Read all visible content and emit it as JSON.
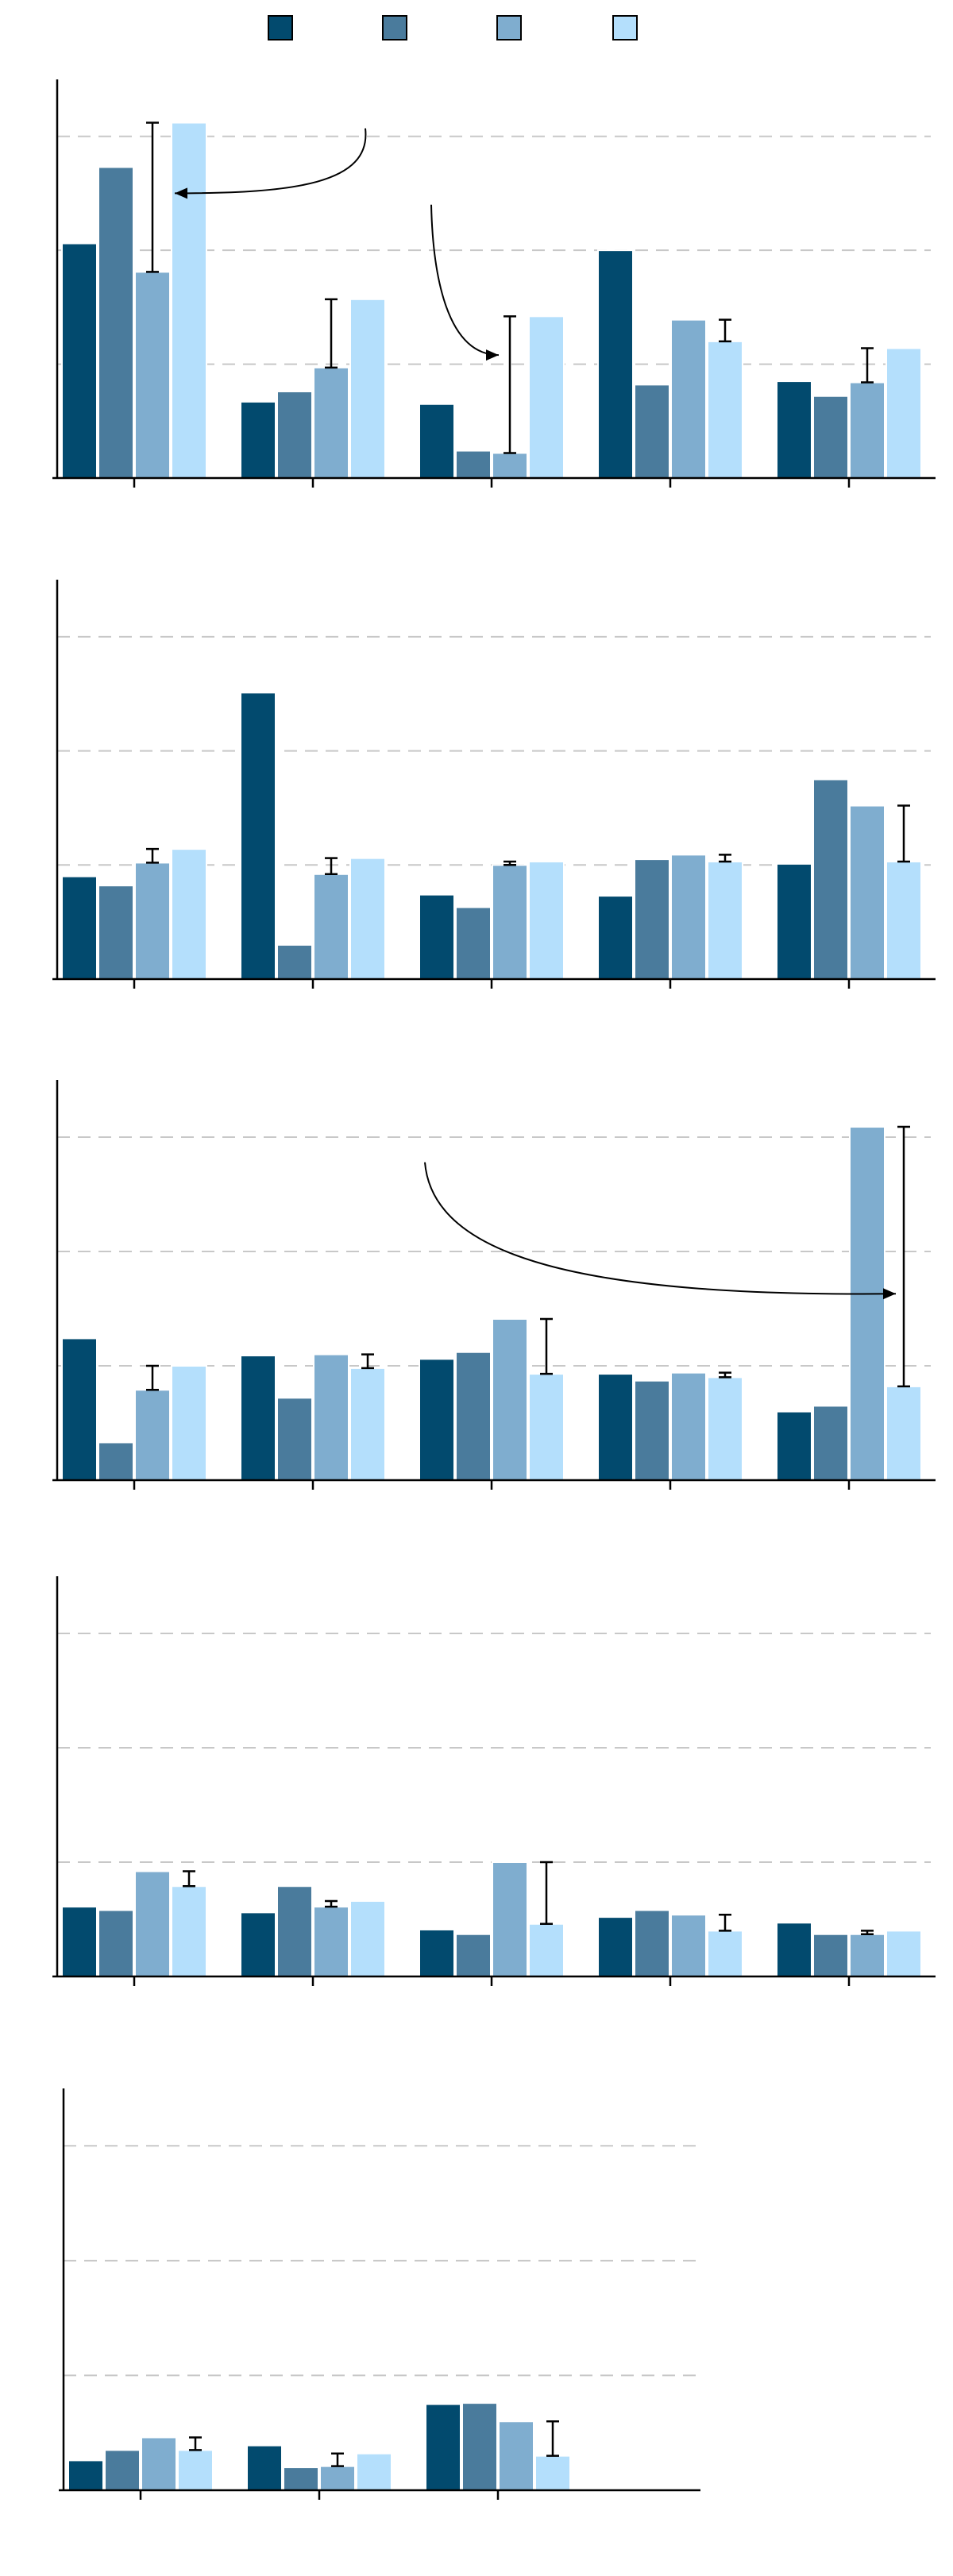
{
  "colors": [
    "#024a6e",
    "#4a7b9c",
    "#7fadcf",
    "#b4dffc"
  ],
  "legend": {
    "position": "top-center",
    "entries": [
      {
        "color": "#024a6e"
      },
      {
        "color": "#4a7b9c"
      },
      {
        "color": "#7fadcf"
      },
      {
        "color": "#b4dffc"
      }
    ]
  },
  "chart_data": [
    {
      "type": "bar",
      "grid": "y-dashed",
      "ylim": [
        0,
        3.5
      ],
      "gridlines": [
        1,
        2,
        3
      ],
      "groups": 5,
      "values": [
        [
          2.06,
          2.73,
          1.81,
          3.12
        ],
        [
          0.67,
          0.76,
          0.97,
          1.57
        ],
        [
          0.65,
          0.24,
          0.22,
          1.42
        ],
        [
          2.0,
          0.82,
          1.39,
          1.2
        ],
        [
          0.85,
          0.72,
          0.84,
          1.14
        ]
      ],
      "errors": [
        [
          null,
          null,
          [
            1.81,
            3.12
          ],
          null
        ],
        [
          null,
          null,
          [
            0.97,
            1.57
          ],
          null
        ],
        [
          null,
          null,
          [
            0.22,
            1.42
          ],
          null
        ],
        [
          null,
          null,
          null,
          [
            1.2,
            1.39
          ]
        ],
        [
          null,
          null,
          [
            0.84,
            1.14
          ],
          null
        ]
      ],
      "annotations": [
        {
          "from": [
            0,
            3.07
          ],
          "to": [
            0,
            2.5
          ]
        },
        {
          "from": [
            2,
            2.4
          ],
          "to": [
            2,
            1.08
          ]
        }
      ]
    },
    {
      "type": "bar",
      "grid": "y-dashed",
      "ylim": [
        0,
        3.5
      ],
      "gridlines": [
        1,
        2,
        3
      ],
      "groups": 5,
      "values": [
        [
          0.9,
          0.82,
          1.02,
          1.14
        ],
        [
          2.51,
          0.3,
          0.92,
          1.06
        ],
        [
          0.74,
          0.63,
          1.0,
          1.03
        ],
        [
          0.73,
          1.05,
          1.09,
          1.03
        ],
        [
          1.01,
          1.75,
          1.52,
          1.03
        ]
      ],
      "errors": [
        [
          null,
          null,
          [
            1.02,
            1.14
          ],
          null
        ],
        [
          null,
          null,
          [
            0.92,
            1.06
          ],
          null
        ],
        [
          null,
          null,
          [
            1.0,
            1.03
          ],
          null
        ],
        [
          null,
          null,
          null,
          [
            1.03,
            1.09
          ]
        ],
        [
          null,
          null,
          null,
          [
            1.03,
            1.52
          ]
        ]
      ],
      "annotations": []
    },
    {
      "type": "bar",
      "grid": "y-dashed",
      "ylim": [
        0,
        3.5
      ],
      "gridlines": [
        1,
        2,
        3
      ],
      "groups": 5,
      "values": [
        [
          1.24,
          0.33,
          0.79,
          1.0
        ],
        [
          1.09,
          0.72,
          1.1,
          0.98
        ],
        [
          1.06,
          1.12,
          1.41,
          0.93
        ],
        [
          0.93,
          0.87,
          0.94,
          0.9
        ],
        [
          0.6,
          0.65,
          3.09,
          0.82
        ]
      ],
      "errors": [
        [
          null,
          null,
          [
            0.79,
            1.0
          ],
          null
        ],
        [
          null,
          null,
          null,
          [
            0.98,
            1.1
          ]
        ],
        [
          null,
          null,
          null,
          [
            0.93,
            1.41
          ]
        ],
        [
          null,
          null,
          null,
          [
            0.9,
            0.94
          ]
        ],
        [
          null,
          null,
          null,
          [
            0.82,
            3.09
          ]
        ]
      ],
      "annotations": [
        {
          "from": [
            2,
            2.78
          ],
          "to": [
            4,
            1.63
          ]
        }
      ]
    },
    {
      "type": "bar",
      "grid": "y-dashed",
      "ylim": [
        0,
        3.5
      ],
      "gridlines": [
        1,
        2,
        3
      ],
      "groups": 5,
      "values": [
        [
          0.61,
          0.58,
          0.92,
          0.79
        ],
        [
          0.56,
          0.79,
          0.61,
          0.66
        ],
        [
          0.41,
          0.37,
          1.0,
          0.46
        ],
        [
          0.52,
          0.58,
          0.54,
          0.4
        ],
        [
          0.47,
          0.37,
          0.37,
          0.4
        ]
      ],
      "errors": [
        [
          null,
          null,
          null,
          [
            0.79,
            0.92
          ]
        ],
        [
          null,
          null,
          [
            0.61,
            0.66
          ],
          null
        ],
        [
          null,
          null,
          null,
          [
            0.46,
            1.0
          ]
        ],
        [
          null,
          null,
          null,
          [
            0.4,
            0.54
          ]
        ],
        [
          null,
          null,
          [
            0.37,
            0.4
          ],
          null
        ]
      ],
      "annotations": []
    },
    {
      "type": "bar",
      "grid": "y-dashed",
      "ylim": [
        0,
        3.5
      ],
      "gridlines": [
        1,
        2,
        3
      ],
      "groups": 3,
      "values": [
        [
          0.26,
          0.35,
          0.46,
          0.35
        ],
        [
          0.39,
          0.2,
          0.21,
          0.32
        ],
        [
          0.75,
          0.76,
          0.6,
          0.3
        ]
      ],
      "errors": [
        [
          null,
          null,
          null,
          [
            0.35,
            0.46
          ]
        ],
        [
          null,
          null,
          [
            0.21,
            0.32
          ],
          null
        ],
        [
          null,
          null,
          null,
          [
            0.3,
            0.6
          ]
        ]
      ],
      "annotations": []
    }
  ]
}
